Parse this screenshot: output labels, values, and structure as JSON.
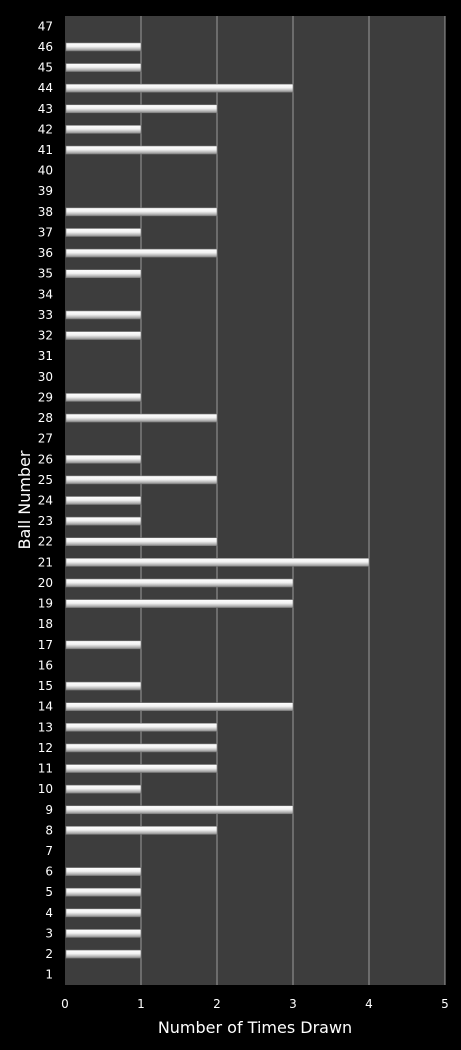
{
  "chart_data": {
    "type": "bar",
    "orientation": "horizontal",
    "xlabel": "Number of Times Drawn",
    "ylabel": "Ball Number",
    "xlim": [
      0,
      5
    ],
    "xticks": [
      0,
      1,
      2,
      3,
      4,
      5
    ],
    "grid": "vertical",
    "categories": [
      "1",
      "2",
      "3",
      "4",
      "5",
      "6",
      "7",
      "8",
      "9",
      "10",
      "11",
      "12",
      "13",
      "14",
      "15",
      "16",
      "17",
      "18",
      "19",
      "20",
      "21",
      "22",
      "23",
      "24",
      "25",
      "26",
      "27",
      "28",
      "29",
      "30",
      "31",
      "32",
      "33",
      "34",
      "35",
      "36",
      "37",
      "38",
      "39",
      "40",
      "41",
      "42",
      "43",
      "44",
      "45",
      "46",
      "47"
    ],
    "values": [
      0,
      1,
      1,
      1,
      1,
      1,
      0,
      2,
      3,
      1,
      2,
      2,
      2,
      3,
      1,
      0,
      1,
      0,
      3,
      3,
      4,
      2,
      1,
      1,
      2,
      1,
      0,
      2,
      1,
      0,
      0,
      1,
      1,
      0,
      1,
      2,
      1,
      2,
      0,
      0,
      2,
      1,
      2,
      3,
      1,
      1,
      0
    ],
    "colors": {
      "background": "#000000",
      "plot_area": "#3d3d3d",
      "gridline": "#9a9a9a",
      "bar": "#e8e8e8",
      "text": "#ffffff"
    }
  }
}
